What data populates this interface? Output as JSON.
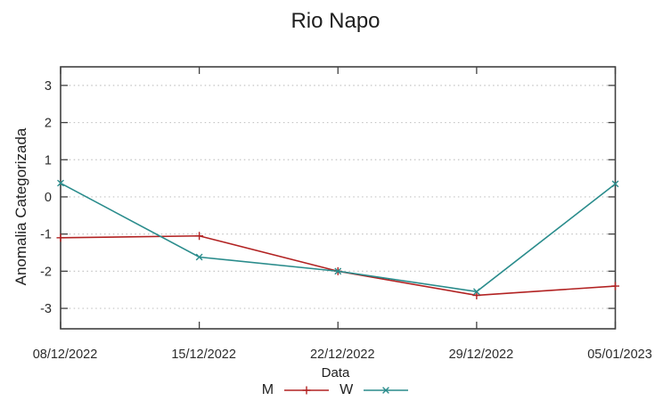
{
  "chart_data": {
    "type": "line",
    "title": "Rio Napo",
    "xlabel": "Data",
    "ylabel": "Anomalia Categorizada",
    "x_labels": [
      "08/12/2022",
      "15/12/2022",
      "22/12/2022",
      "29/12/2022",
      "05/01/2023"
    ],
    "y_ticks": [
      -3,
      -2,
      -1,
      0,
      1,
      2,
      3
    ],
    "ylim": [
      -3.55,
      3.5
    ],
    "grid": true,
    "grid_style": "dotted",
    "legend_position": "bottom-center",
    "series": [
      {
        "name": "M",
        "color": "#b22222",
        "marker": "plus",
        "values": [
          -1.1,
          -1.05,
          -2.0,
          -2.65,
          -2.4
        ]
      },
      {
        "name": "W",
        "color": "#2a8c8c",
        "marker": "cross",
        "values": [
          0.37,
          -1.62,
          -2.0,
          -2.55,
          0.35
        ]
      }
    ]
  },
  "colors": {
    "axis": "#404040",
    "grid": "#c4c4c4",
    "text": "#2b2b2b",
    "background": "#ffffff"
  }
}
